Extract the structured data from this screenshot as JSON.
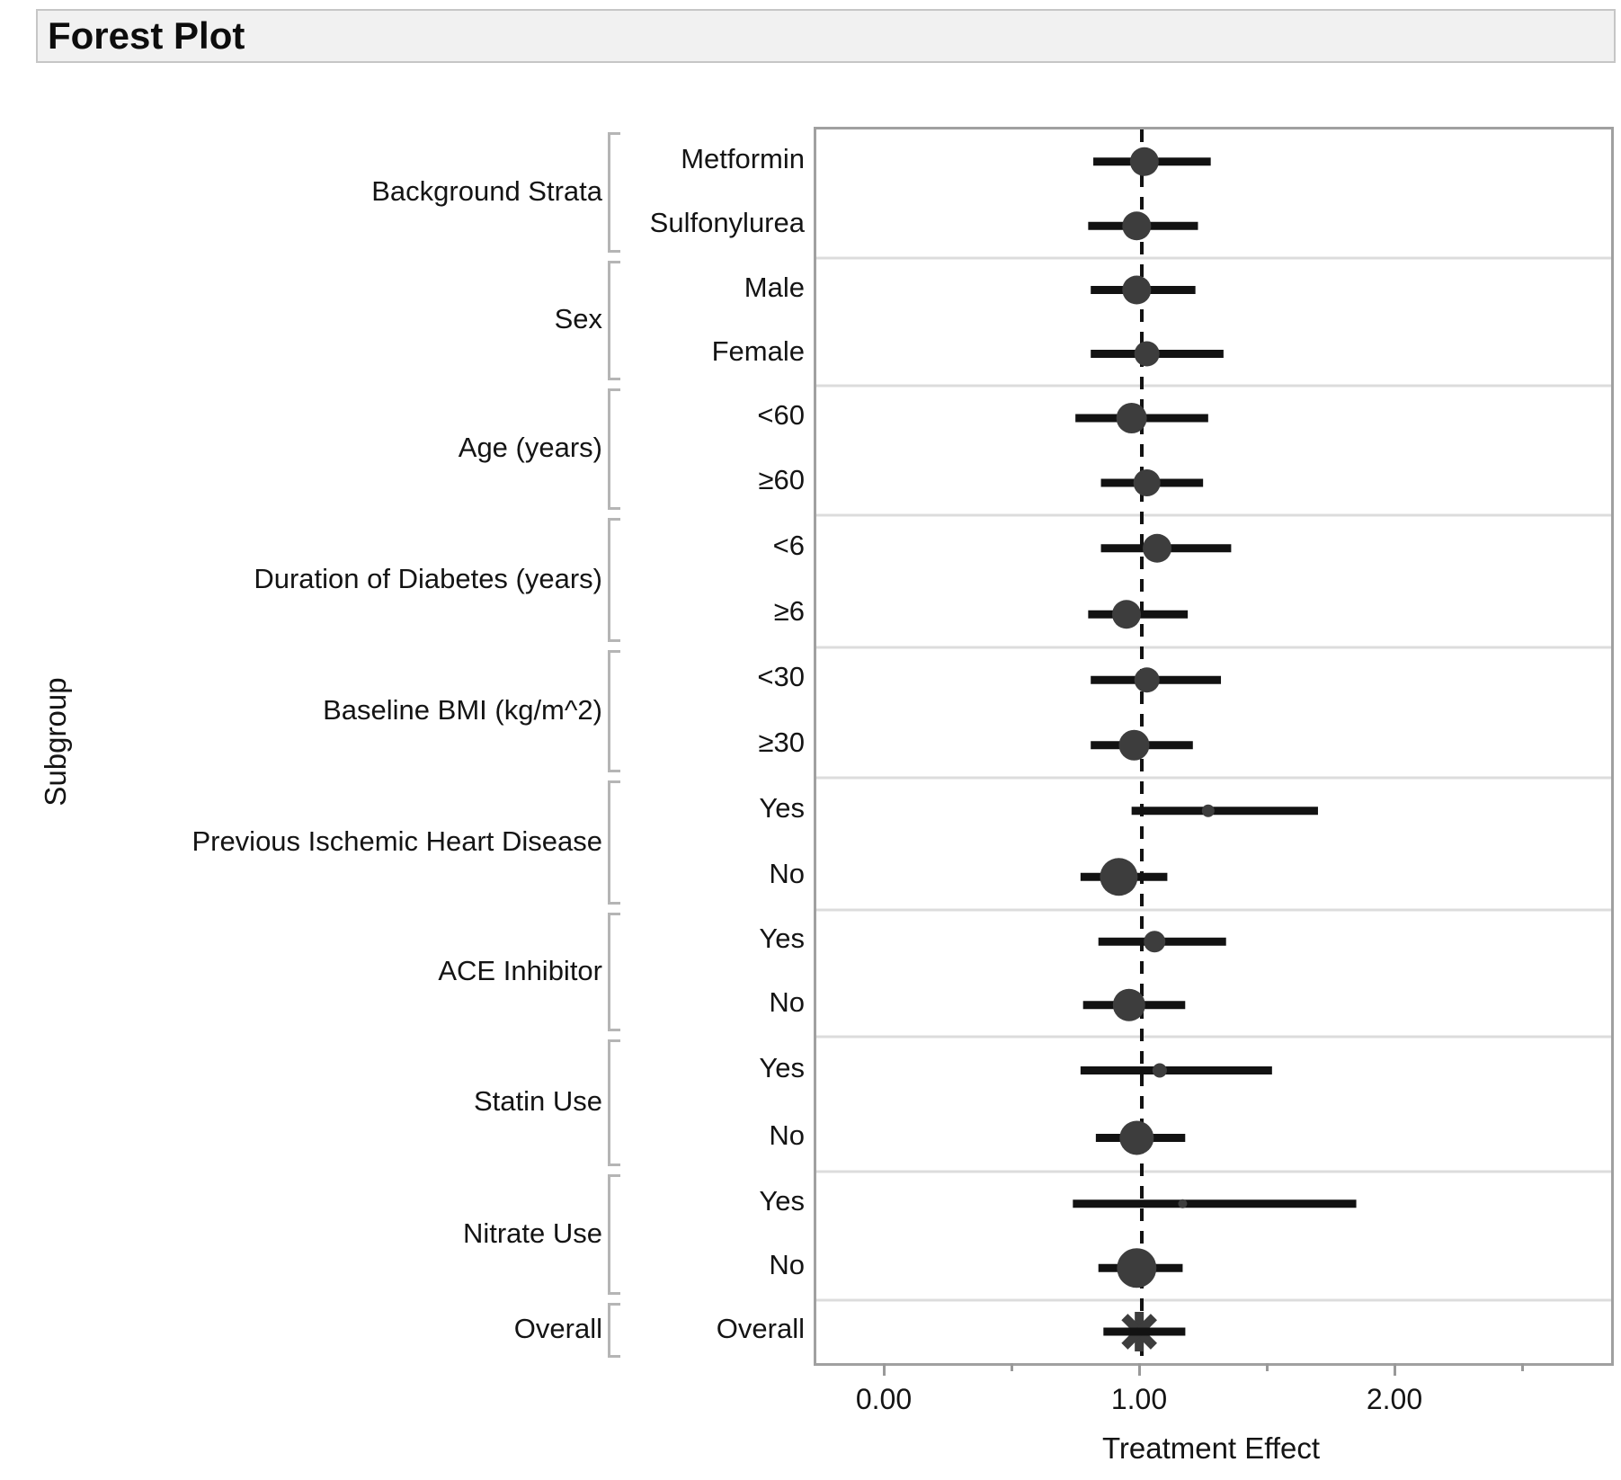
{
  "window": {
    "title": "Forest Plot"
  },
  "chart_data": {
    "type": "scatter",
    "subtype": "forest-plot",
    "title": "Forest Plot",
    "xlabel": "Treatment Effect",
    "ylabel": "Subgroup",
    "x_range": [
      -0.275,
      2.85
    ],
    "reference_line": 1.0,
    "grid": "section-separators-only",
    "x_ticks": [
      {
        "value": 0.0,
        "label": "0.00"
      },
      {
        "value": 1.0,
        "label": "1.00"
      },
      {
        "value": 2.0,
        "label": "2.00"
      }
    ],
    "x_minor_ticks": [
      0.5,
      1.5,
      2.5
    ],
    "marker_color": "#3d3d3d",
    "ci_color": "#121212",
    "groups": [
      {
        "name": "Background Strata",
        "rows": [
          {
            "label": "Metformin",
            "estimate": 1.01,
            "ci_low": 0.81,
            "ci_high": 1.27,
            "marker": "circle",
            "marker_radius": 16
          },
          {
            "label": "Sulfonylurea",
            "estimate": 0.98,
            "ci_low": 0.79,
            "ci_high": 1.22,
            "marker": "circle",
            "marker_radius": 16
          }
        ]
      },
      {
        "name": "Sex",
        "rows": [
          {
            "label": "Male",
            "estimate": 0.98,
            "ci_low": 0.8,
            "ci_high": 1.21,
            "marker": "circle",
            "marker_radius": 16
          },
          {
            "label": "Female",
            "estimate": 1.02,
            "ci_low": 0.8,
            "ci_high": 1.32,
            "marker": "circle",
            "marker_radius": 14
          }
        ]
      },
      {
        "name": "Age (years)",
        "rows": [
          {
            "label": "<60",
            "estimate": 0.96,
            "ci_low": 0.74,
            "ci_high": 1.26,
            "marker": "circle",
            "marker_radius": 17
          },
          {
            "label": "≥60",
            "estimate": 1.02,
            "ci_low": 0.84,
            "ci_high": 1.24,
            "marker": "circle",
            "marker_radius": 15
          }
        ]
      },
      {
        "name": "Duration of Diabetes (years)",
        "rows": [
          {
            "label": "<6",
            "estimate": 1.06,
            "ci_low": 0.84,
            "ci_high": 1.35,
            "marker": "circle",
            "marker_radius": 16
          },
          {
            "label": "≥6",
            "estimate": 0.94,
            "ci_low": 0.79,
            "ci_high": 1.18,
            "marker": "circle",
            "marker_radius": 16
          }
        ]
      },
      {
        "name": "Baseline BMI (kg/m^2)",
        "rows": [
          {
            "label": "<30",
            "estimate": 1.02,
            "ci_low": 0.8,
            "ci_high": 1.31,
            "marker": "circle",
            "marker_radius": 14
          },
          {
            "label": "≥30",
            "estimate": 0.97,
            "ci_low": 0.8,
            "ci_high": 1.2,
            "marker": "circle",
            "marker_radius": 17
          }
        ]
      },
      {
        "name": "Previous Ischemic Heart Disease",
        "rows": [
          {
            "label": "Yes",
            "estimate": 1.26,
            "ci_low": 0.96,
            "ci_high": 1.69,
            "marker": "circle",
            "marker_radius": 7
          },
          {
            "label": "No",
            "estimate": 0.91,
            "ci_low": 0.76,
            "ci_high": 1.1,
            "marker": "circle",
            "marker_radius": 21
          }
        ]
      },
      {
        "name": "ACE Inhibitor",
        "rows": [
          {
            "label": "Yes",
            "estimate": 1.05,
            "ci_low": 0.83,
            "ci_high": 1.33,
            "marker": "circle",
            "marker_radius": 12
          },
          {
            "label": "No",
            "estimate": 0.95,
            "ci_low": 0.77,
            "ci_high": 1.17,
            "marker": "circle",
            "marker_radius": 18
          }
        ]
      },
      {
        "name": "Statin Use",
        "rows": [
          {
            "label": "Yes",
            "estimate": 1.07,
            "ci_low": 0.76,
            "ci_high": 1.51,
            "marker": "circle",
            "marker_radius": 8
          },
          {
            "label": "No",
            "estimate": 0.98,
            "ci_low": 0.82,
            "ci_high": 1.17,
            "marker": "circle",
            "marker_radius": 19
          }
        ]
      },
      {
        "name": "Nitrate Use",
        "rows": [
          {
            "label": "Yes",
            "estimate": 1.16,
            "ci_low": 0.73,
            "ci_high": 1.84,
            "marker": "circle",
            "marker_radius": 5
          },
          {
            "label": "No",
            "estimate": 0.98,
            "ci_low": 0.83,
            "ci_high": 1.16,
            "marker": "circle",
            "marker_radius": 22
          }
        ]
      },
      {
        "name": "Overall",
        "rows": [
          {
            "label": "Overall",
            "estimate": 0.99,
            "ci_low": 0.85,
            "ci_high": 1.17,
            "marker": "asterisk",
            "marker_radius": 22
          }
        ]
      }
    ]
  }
}
